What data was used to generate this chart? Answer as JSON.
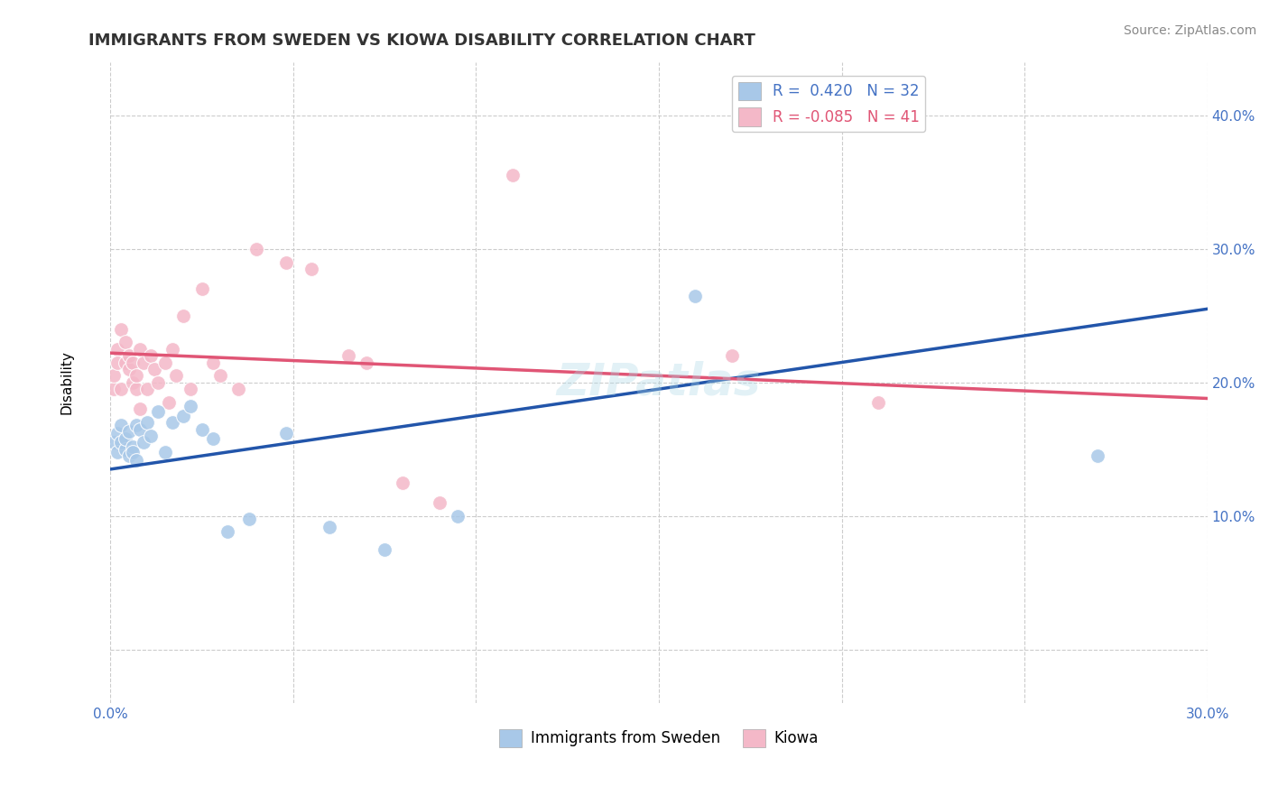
{
  "title": "IMMIGRANTS FROM SWEDEN VS KIOWA DISABILITY CORRELATION CHART",
  "source": "Source: ZipAtlas.com",
  "ylabel": "Disability",
  "xlim": [
    0.0,
    0.3
  ],
  "ylim": [
    -0.04,
    0.44
  ],
  "xticks": [
    0.0,
    0.05,
    0.1,
    0.15,
    0.2,
    0.25,
    0.3
  ],
  "yticks": [
    0.0,
    0.1,
    0.2,
    0.3,
    0.4
  ],
  "r_blue": 0.42,
  "n_blue": 32,
  "r_pink": -0.085,
  "n_pink": 41,
  "blue_color": "#a8c8e8",
  "pink_color": "#f4b8c8",
  "blue_line_color": "#2255aa",
  "pink_line_color": "#e05575",
  "watermark": "ZIPatlas",
  "blue_scatter_x": [
    0.001,
    0.002,
    0.002,
    0.003,
    0.003,
    0.004,
    0.004,
    0.005,
    0.005,
    0.006,
    0.006,
    0.007,
    0.007,
    0.008,
    0.009,
    0.01,
    0.011,
    0.013,
    0.015,
    0.017,
    0.02,
    0.022,
    0.025,
    0.028,
    0.032,
    0.038,
    0.048,
    0.06,
    0.075,
    0.095,
    0.16,
    0.27
  ],
  "blue_scatter_y": [
    0.155,
    0.148,
    0.162,
    0.155,
    0.168,
    0.15,
    0.158,
    0.145,
    0.163,
    0.152,
    0.148,
    0.142,
    0.168,
    0.165,
    0.155,
    0.17,
    0.16,
    0.178,
    0.148,
    0.17,
    0.175,
    0.182,
    0.165,
    0.158,
    0.088,
    0.098,
    0.162,
    0.092,
    0.075,
    0.1,
    0.265,
    0.145
  ],
  "pink_scatter_x": [
    0.001,
    0.001,
    0.002,
    0.002,
    0.003,
    0.003,
    0.004,
    0.004,
    0.005,
    0.005,
    0.006,
    0.006,
    0.007,
    0.007,
    0.008,
    0.008,
    0.009,
    0.01,
    0.011,
    0.012,
    0.013,
    0.015,
    0.016,
    0.017,
    0.018,
    0.02,
    0.022,
    0.025,
    0.028,
    0.03,
    0.035,
    0.04,
    0.048,
    0.055,
    0.065,
    0.07,
    0.08,
    0.09,
    0.11,
    0.17,
    0.21
  ],
  "pink_scatter_y": [
    0.195,
    0.205,
    0.225,
    0.215,
    0.24,
    0.195,
    0.215,
    0.23,
    0.21,
    0.22,
    0.2,
    0.215,
    0.195,
    0.205,
    0.225,
    0.18,
    0.215,
    0.195,
    0.22,
    0.21,
    0.2,
    0.215,
    0.185,
    0.225,
    0.205,
    0.25,
    0.195,
    0.27,
    0.215,
    0.205,
    0.195,
    0.3,
    0.29,
    0.285,
    0.22,
    0.215,
    0.125,
    0.11,
    0.355,
    0.22,
    0.185
  ],
  "title_fontsize": 13,
  "axis_label_fontsize": 11,
  "tick_fontsize": 11,
  "legend_fontsize": 12,
  "source_fontsize": 10,
  "watermark_fontsize": 36
}
